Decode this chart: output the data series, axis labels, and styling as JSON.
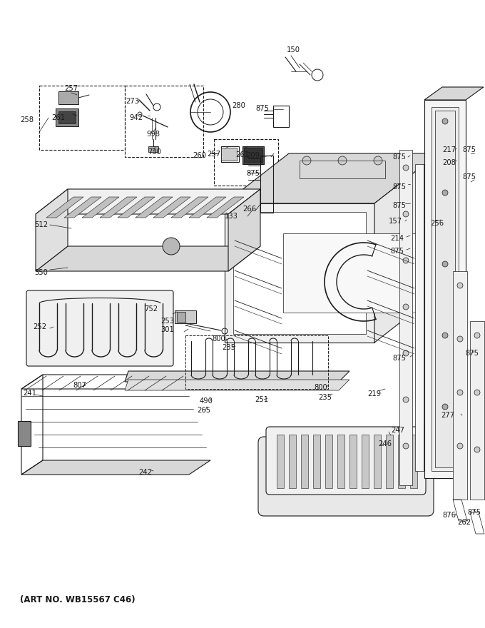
{
  "art_no": "(ART NO. WB15567 C46)",
  "bg_color": "#ffffff",
  "line_color": "#1a1a1a",
  "gray_light": "#d8d8d8",
  "gray_med": "#aaaaaa",
  "gray_dark": "#888888",
  "figsize": [
    6.8,
    8.8
  ],
  "dpi": 100
}
